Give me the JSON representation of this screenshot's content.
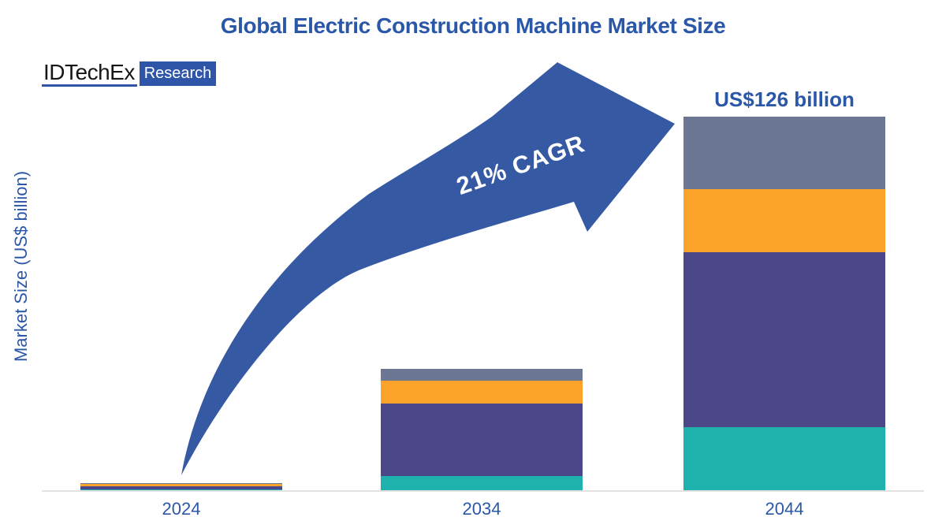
{
  "header": {
    "title": "Global Electric Construction Machine Market Size"
  },
  "logo": {
    "wordmark": "IDTechEx",
    "badge": "Research"
  },
  "theme": {
    "text_blue": "#2B57A8",
    "arrow_blue": "#3659A4",
    "logo_blue": "#2E55A8",
    "axis_line_gray": "#E2E2E2",
    "background": "#FFFFFF"
  },
  "chart_data": {
    "type": "bar",
    "stacked": true,
    "title": "Global Electric Construction Machine Market Size",
    "xlabel": "",
    "ylabel": "Market Size (US$ billion)",
    "categories": [
      "2024",
      "2034",
      "2044"
    ],
    "series": [
      {
        "name": "teal-segment",
        "color": "#1FB2AD",
        "values": [
          0.5,
          5.0,
          21.5
        ]
      },
      {
        "name": "purple-segment",
        "color": "#4B4789",
        "values": [
          1.2,
          24.5,
          59.0
        ]
      },
      {
        "name": "orange-segment",
        "color": "#FBA32B",
        "values": [
          0.8,
          7.7,
          21.0
        ]
      },
      {
        "name": "gray-segment",
        "color": "#6B7793",
        "values": [
          0.1,
          3.8,
          24.5
        ]
      }
    ],
    "totals_billion": [
      2.6,
      41.0,
      126.0
    ],
    "value_label_2044": "US$126 billion",
    "cagr_label": "21% CAGR",
    "legend": "none",
    "gridlines": false,
    "units": "US$ billion"
  }
}
